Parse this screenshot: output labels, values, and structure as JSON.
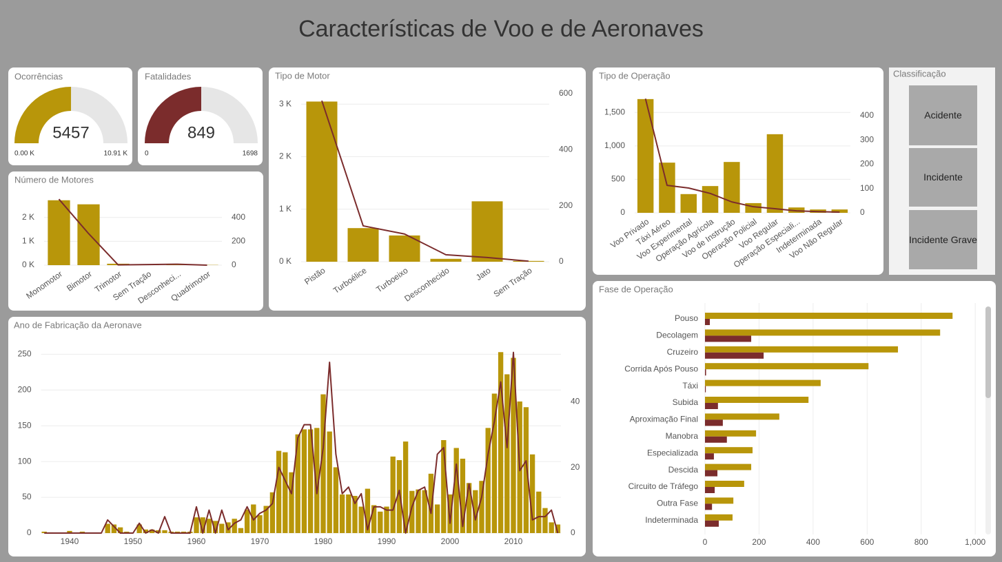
{
  "title": "Características de Voo e de Aeronaves",
  "slicer": {
    "title": "Classificação",
    "items": [
      "Acidente",
      "Incidente",
      "Incidente Grave"
    ]
  },
  "chart_data": [
    {
      "type": "gauge",
      "title": "Ocorrências",
      "value": 5457,
      "color": "#b8960a",
      "ylim": [
        0,
        10910
      ],
      "yticks": [
        {
          "value": 0,
          "label": "0.00 K"
        },
        {
          "value": 10910,
          "label": "10.91 K"
        }
      ]
    },
    {
      "type": "gauge",
      "title": "Fatalidades",
      "value": 849,
      "color": "#7b2c2c",
      "ylim": [
        0,
        1698
      ],
      "yticks": [
        0,
        1698
      ]
    },
    {
      "type": "combo",
      "title": "Número de Motores",
      "categories": [
        "Monomotor",
        "Bimotor",
        "Trimotor",
        "Sem Tração",
        "Desconheci...",
        "Quadrimotor"
      ],
      "series": [
        {
          "type": "bar",
          "color": "#b8960a",
          "values": [
            2720,
            2550,
            60,
            30,
            40,
            10
          ]
        },
        {
          "type": "line",
          "axis": "y2",
          "color": "#7b2c2c",
          "values": [
            553,
            265,
            2,
            5,
            8,
            0
          ]
        }
      ],
      "ylim": [
        0,
        2800
      ],
      "yticks": [
        {
          "value": 0,
          "label": "0 K"
        },
        {
          "value": 1000,
          "label": "1 K"
        },
        {
          "value": 2000,
          "label": "2 K"
        }
      ],
      "y2lim": [
        0,
        560
      ],
      "y2ticks": [
        0,
        200,
        400
      ],
      "grid": true
    },
    {
      "type": "combo",
      "title": "Tipo de Motor",
      "categories": [
        "Pistão",
        "Turboélice",
        "Turboeixo",
        "Desconhecido",
        "Jato",
        "Sem Tração"
      ],
      "series": [
        {
          "type": "bar",
          "color": "#b8960a",
          "values": [
            3050,
            640,
            500,
            55,
            1150,
            15
          ]
        },
        {
          "type": "line",
          "axis": "y2",
          "color": "#7b2c2c",
          "values": [
            575,
            128,
            99,
            25,
            15,
            2
          ]
        }
      ],
      "ylim": [
        0,
        3200
      ],
      "yticks": [
        {
          "value": 0,
          "label": "0 K"
        },
        {
          "value": 1000,
          "label": "1 K"
        },
        {
          "value": 2000,
          "label": "2 K"
        },
        {
          "value": 3000,
          "label": "3 K"
        }
      ],
      "y2lim": [
        0,
        600
      ],
      "y2ticks": [
        0,
        200,
        400,
        600
      ],
      "grid": true
    },
    {
      "type": "combo",
      "title": "Tipo de Operação",
      "categories": [
        "Voo Privado",
        "Táxi Aéreo",
        "Voo Experimental",
        "Operação Agrícola",
        "Voo de Instrução",
        "Operação Policial",
        "Voo Regular",
        "Operação Especiali...",
        "Indeterminada",
        "Voo Não Regular"
      ],
      "series": [
        {
          "type": "bar",
          "color": "#b8960a",
          "values": [
            1700,
            750,
            280,
            400,
            760,
            145,
            1175,
            80,
            50,
            50
          ]
        },
        {
          "type": "line",
          "axis": "y2",
          "color": "#7b2c2c",
          "values": [
            470,
            113,
            102,
            80,
            45,
            25,
            17,
            8,
            5,
            3
          ]
        }
      ],
      "ylim": [
        0,
        1750
      ],
      "yticks": [
        0,
        500,
        {
          "value": 1000,
          "label": "1,000"
        },
        {
          "value": 1500,
          "label": "1,500"
        }
      ],
      "y2lim": [
        0,
        482
      ],
      "y2ticks": [
        0,
        100,
        200,
        300,
        400
      ],
      "grid": true
    },
    {
      "type": "combo",
      "title": "Ano de Fabricação da Aeronave",
      "x": [
        1936,
        1937,
        1938,
        1939,
        1940,
        1941,
        1942,
        1943,
        1944,
        1945,
        1946,
        1947,
        1948,
        1949,
        1950,
        1951,
        1952,
        1953,
        1954,
        1955,
        1956,
        1957,
        1958,
        1959,
        1960,
        1961,
        1962,
        1963,
        1964,
        1965,
        1966,
        1967,
        1968,
        1969,
        1970,
        1971,
        1972,
        1973,
        1974,
        1975,
        1976,
        1977,
        1978,
        1979,
        1980,
        1981,
        1982,
        1983,
        1984,
        1985,
        1986,
        1987,
        1988,
        1989,
        1990,
        1991,
        1992,
        1993,
        1994,
        1995,
        1996,
        1997,
        1998,
        1999,
        2000,
        2001,
        2002,
        2003,
        2004,
        2005,
        2006,
        2007,
        2008,
        2009,
        2010,
        2011,
        2012,
        2013,
        2014,
        2015,
        2016,
        2017
      ],
      "series": [
        {
          "type": "bar",
          "color": "#b8960a",
          "values": [
            2,
            1,
            0,
            0,
            3,
            0,
            2,
            0,
            0,
            0,
            13,
            12,
            8,
            2,
            0,
            12,
            5,
            5,
            4,
            4,
            2,
            2,
            2,
            2,
            22,
            22,
            20,
            17,
            13,
            15,
            20,
            7,
            33,
            40,
            25,
            38,
            57,
            115,
            113,
            85,
            138,
            145,
            145,
            147,
            194,
            142,
            92,
            54,
            54,
            52,
            37,
            62,
            39,
            30,
            37,
            107,
            102,
            128,
            59,
            61,
            60,
            83,
            40,
            130,
            54,
            119,
            104,
            70,
            60,
            73,
            147,
            195,
            253,
            222,
            245,
            184,
            176,
            110,
            58,
            35,
            15,
            12
          ]
        },
        {
          "type": "line",
          "axis": "y2",
          "color": "#7b2c2c",
          "values": [
            0,
            0,
            0,
            0,
            0,
            0,
            0,
            0,
            0,
            0,
            4,
            2,
            0,
            0,
            0,
            3,
            0,
            1,
            0,
            5,
            0,
            0,
            0,
            0,
            8,
            0,
            7,
            0,
            7,
            1,
            3,
            4,
            8,
            4,
            6,
            7,
            9,
            20,
            16,
            12,
            29,
            33,
            33,
            12,
            26,
            52,
            24,
            12,
            14,
            9,
            12,
            1,
            8,
            8,
            7,
            7,
            13,
            0,
            8,
            13,
            14,
            6,
            24,
            26,
            3,
            21,
            2,
            15,
            4,
            11,
            24,
            34,
            46,
            26,
            55,
            19,
            22,
            4,
            5,
            5,
            7,
            0
          ]
        }
      ],
      "xlim": [
        1935.5,
        2017.5
      ],
      "xticks": [
        1940,
        1950,
        1960,
        1970,
        1980,
        1990,
        2000,
        2010
      ],
      "ylim": [
        0,
        260
      ],
      "yticks": [
        0,
        50,
        100,
        150,
        200,
        250
      ],
      "y2lim": [
        0,
        56.6
      ],
      "y2ticks": [
        0,
        20,
        40
      ],
      "grid": true
    },
    {
      "type": "hbar",
      "title": "Fase de Operação",
      "categories": [
        "Pouso",
        "Decolagem",
        "Cruzeiro",
        "Corrida Após Pouso",
        "Táxi",
        "Subida",
        "Aproximação Final",
        "Manobra",
        "Especializada",
        "Descida",
        "Circuito de Tráfego",
        "Outra Fase",
        "Indeterminada"
      ],
      "series": [
        {
          "color": "#b8960a",
          "values": [
            916,
            870,
            714,
            605,
            428,
            383,
            275,
            189,
            176,
            171,
            145,
            105,
            102
          ]
        },
        {
          "color": "#7b2c2c",
          "values": [
            18,
            171,
            217,
            4,
            3,
            48,
            66,
            81,
            33,
            46,
            36,
            26,
            51
          ]
        }
      ],
      "xlim": [
        0,
        1025
      ],
      "xticks": [
        0,
        200,
        400,
        600,
        800,
        {
          "value": 1000,
          "label": "1,000"
        }
      ],
      "grid": true
    }
  ]
}
